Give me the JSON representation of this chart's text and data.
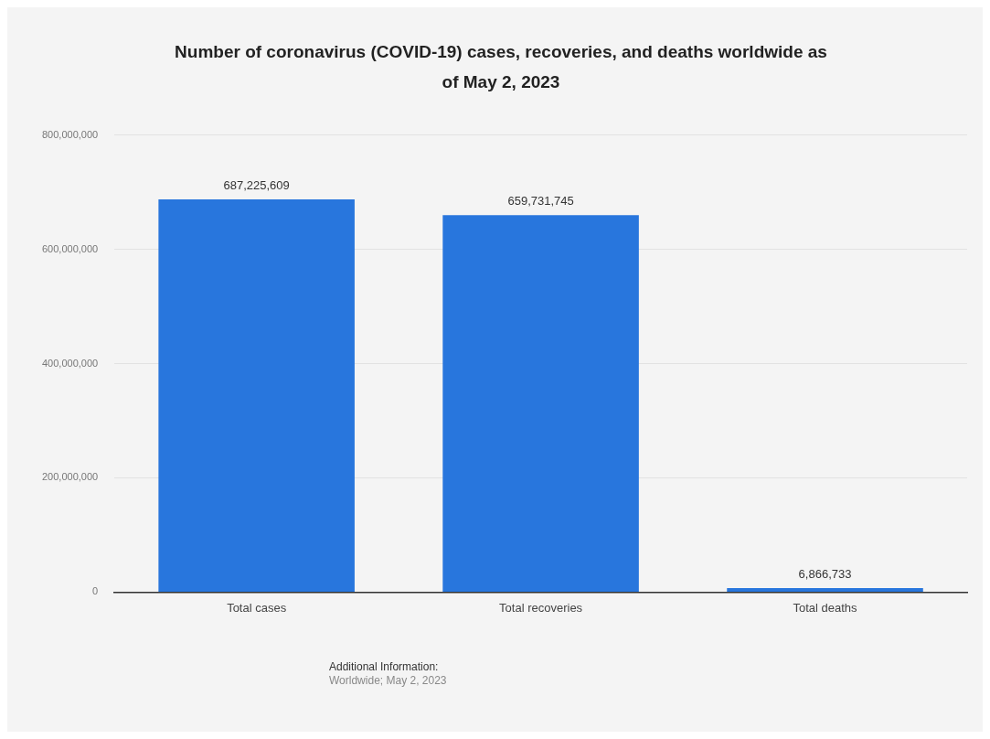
{
  "chart_data": {
    "type": "bar",
    "title": "Number of coronavirus (COVID-19) cases, recoveries, and deaths worldwide as of May 2, 2023",
    "categories": [
      "Total cases",
      "Total recoveries",
      "Total deaths"
    ],
    "values": [
      687225609,
      659731745,
      6866733
    ],
    "color": "#2876dd",
    "value_labels": [
      "687,225,609",
      "659,731,745",
      "6,866,733"
    ],
    "ylim": [
      0,
      800000000
    ],
    "yticks": [
      0,
      {
        "value": 200000000,
        "label": "200,000,000"
      },
      {
        "value": 400000000,
        "label": "400,000,000"
      },
      {
        "value": 600000000,
        "label": "600,000,000"
      },
      {
        "value": 800000000,
        "label": "800,000,000"
      }
    ],
    "grid": "y",
    "legend": false,
    "annotations": [
      "Additional Information:",
      "Worldwide; May 2, 2023"
    ]
  }
}
